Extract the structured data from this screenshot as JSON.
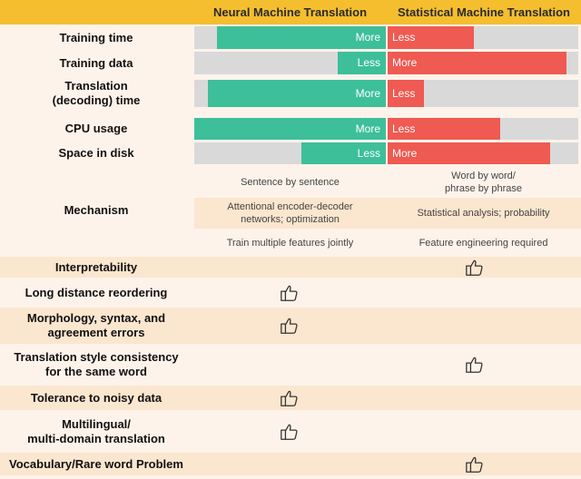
{
  "header": {
    "nmt": "Neural Machine Translation",
    "smt": "Statistical Machine Translation"
  },
  "colors": {
    "nmt_bar": "#3dbf9a",
    "smt_bar": "#ef5a52",
    "header": "#f5be2e",
    "track": "#d9d9d9"
  },
  "bars": [
    {
      "label": "Training time",
      "nmt": {
        "text": "More",
        "level": 0.88
      },
      "smt": {
        "text": "Less",
        "level": 0.45
      }
    },
    {
      "label": "Training data",
      "nmt": {
        "text": "Less",
        "level": 0.25
      },
      "smt": {
        "text": "More",
        "level": 0.94
      }
    },
    {
      "label": "Translation\n(decoding) time",
      "nmt": {
        "text": "More",
        "level": 0.93
      },
      "smt": {
        "text": "Less",
        "level": 0.19
      }
    },
    {
      "label": "CPU usage",
      "nmt": {
        "text": "More",
        "level": 1.0
      },
      "smt": {
        "text": "Less",
        "level": 0.59
      }
    },
    {
      "label": "Space in disk",
      "nmt": {
        "text": "Less",
        "level": 0.44
      },
      "smt": {
        "text": "More",
        "level": 0.85
      }
    }
  ],
  "mechanism": {
    "label": "Mechanism",
    "rows": [
      {
        "nmt": "Sentence by sentence",
        "smt": "Word by word/\nphrase by phrase"
      },
      {
        "nmt": "Attentional encoder-decoder\nnetworks; optimization",
        "smt": "Statistical analysis; probability"
      },
      {
        "nmt": "Train multiple features jointly",
        "smt": "Feature engineering required"
      }
    ]
  },
  "criteria": [
    {
      "label": "Interpretability",
      "winner": "smt",
      "icon": "thumbs-up-icon"
    },
    {
      "label": "Long distance reordering",
      "winner": "nmt",
      "icon": "thumbs-up-icon"
    },
    {
      "label": "Morphology, syntax, and\nagreement errors",
      "winner": "nmt",
      "icon": "thumbs-up-icon"
    },
    {
      "label": "Translation style consistency\nfor the same word",
      "winner": "smt",
      "icon": "thumbs-up-icon"
    },
    {
      "label": "Tolerance to noisy data",
      "winner": "nmt",
      "icon": "thumbs-up-icon"
    },
    {
      "label": "Multilingual/\nmulti-domain translation",
      "winner": "nmt",
      "icon": "thumbs-up-icon"
    },
    {
      "label": "Vocabulary/Rare word Problem",
      "winner": "smt",
      "icon": "thumbs-up-icon"
    }
  ]
}
